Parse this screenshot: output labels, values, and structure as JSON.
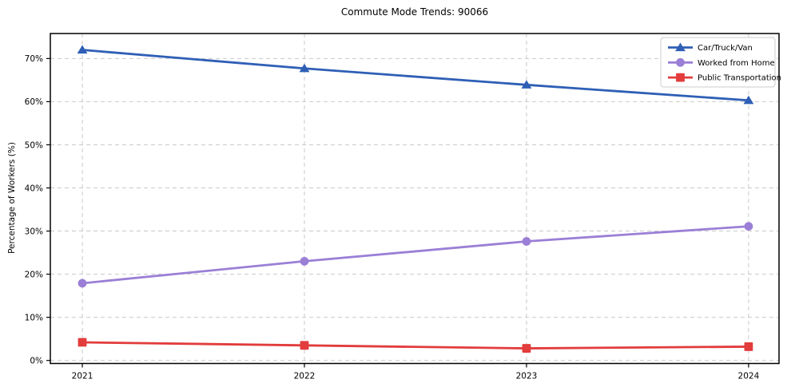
{
  "chart_data": {
    "type": "line",
    "title": "Commute Mode Trends: 90066",
    "xlabel": "",
    "ylabel": "Percentage of Workers (%)",
    "x": [
      2021,
      2022,
      2023,
      2024
    ],
    "x_tick_labels": [
      "2021",
      "2022",
      "2023",
      "2024"
    ],
    "series": [
      {
        "name": "Car/Truck/Van",
        "color": "#2e5fb5",
        "marker": "triangle",
        "values": [
          72.0,
          67.7,
          63.9,
          60.3
        ]
      },
      {
        "name": "Worked from Home",
        "color": "#9b7fd6",
        "marker": "circle",
        "values": [
          17.9,
          23.0,
          27.6,
          31.1
        ]
      },
      {
        "name": "Public Transportation",
        "color": "#e23c3c",
        "marker": "square",
        "values": [
          4.2,
          3.5,
          2.8,
          3.2
        ]
      }
    ],
    "yticks": [
      0,
      10,
      20,
      30,
      40,
      50,
      60,
      70
    ],
    "ytick_format": "{v}%",
    "ylim": [
      -0.7,
      75.8
    ],
    "xlim": [
      2020.856,
      2024.137
    ],
    "grid": true,
    "legend_position": "upper right",
    "colors": {
      "grid": "#c9c9c9",
      "axis": "#000000",
      "background": "#ffffff",
      "legend_border": "#cccccc"
    }
  }
}
